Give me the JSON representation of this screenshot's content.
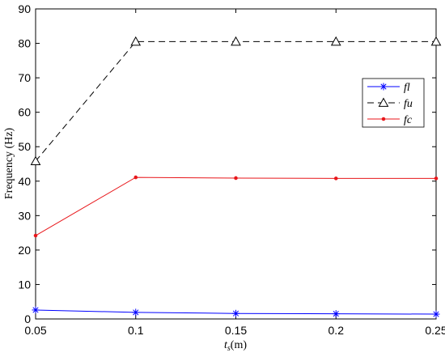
{
  "chart_data": {
    "type": "line",
    "title": "",
    "xlabel_main": "t",
    "xlabel_sub": "s",
    "xlabel_unit": "(m)",
    "ylabel": "Frequency (Hz)",
    "xlim": [
      0.05,
      0.25
    ],
    "ylim": [
      0,
      90
    ],
    "x_ticks": [
      "0.05",
      "0.1",
      "0.15",
      "0.2",
      "0.25"
    ],
    "y_ticks": [
      "0",
      "10",
      "20",
      "30",
      "40",
      "50",
      "60",
      "70",
      "80",
      "90"
    ],
    "grid": false,
    "legend_position": "right",
    "x": [
      0.05,
      0.1,
      0.15,
      0.2,
      0.25
    ],
    "series": [
      {
        "name": "fl",
        "values": [
          2.6,
          1.9,
          1.6,
          1.5,
          1.4
        ],
        "color": "#0000ff",
        "marker": "asterisk",
        "dash": "solid"
      },
      {
        "name": "fu",
        "values": [
          45.8,
          80.5,
          80.5,
          80.5,
          80.5
        ],
        "color": "#000000",
        "marker": "triangle",
        "dash": "dashed"
      },
      {
        "name": "fc",
        "values": [
          24.2,
          41.1,
          40.9,
          40.8,
          40.8
        ],
        "color": "#e8171b",
        "marker": "dot",
        "dash": "solid"
      }
    ]
  }
}
